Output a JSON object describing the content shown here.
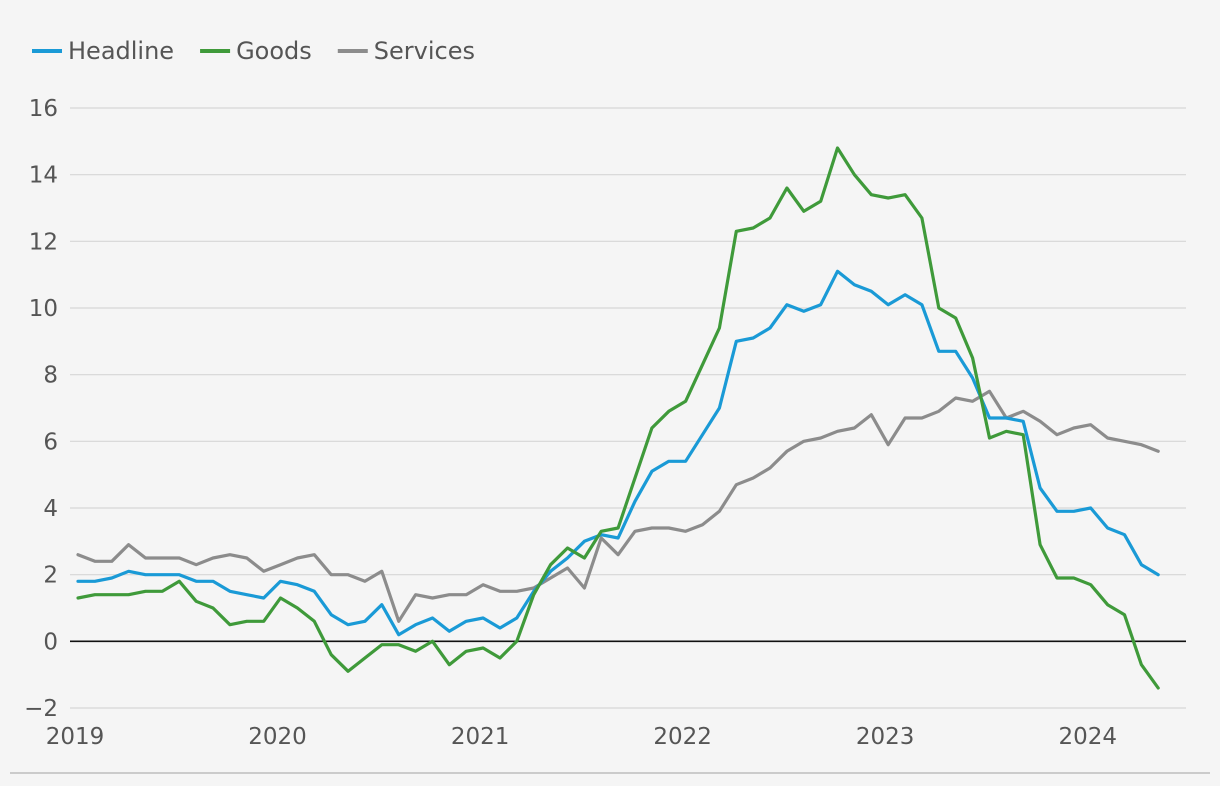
{
  "chart_data": {
    "type": "line",
    "title": "",
    "xlabel": "",
    "ylabel": "",
    "ylim": [
      -2,
      16
    ],
    "xlim": [
      2019.0,
      2024.5
    ],
    "x_ticks": [
      {
        "value": 2019,
        "label": "2019"
      },
      {
        "value": 2020,
        "label": "2020"
      },
      {
        "value": 2021,
        "label": "2021"
      },
      {
        "value": 2022,
        "label": "2022"
      },
      {
        "value": 2023,
        "label": "2023"
      },
      {
        "value": 2024,
        "label": "2024"
      }
    ],
    "y_ticks": [
      {
        "value": -2,
        "label": "−2"
      },
      {
        "value": 0,
        "label": "0"
      },
      {
        "value": 2,
        "label": "2"
      },
      {
        "value": 4,
        "label": "4"
      },
      {
        "value": 6,
        "label": "6"
      },
      {
        "value": 8,
        "label": "8"
      },
      {
        "value": 10,
        "label": "10"
      },
      {
        "value": 12,
        "label": "12"
      },
      {
        "value": 14,
        "label": "14"
      },
      {
        "value": 16,
        "label": "16"
      }
    ],
    "grid": true,
    "legend_position": "top-left",
    "x_start": 2019.0,
    "x_step": 0.0833333,
    "series": [
      {
        "name": "Headline",
        "color": "#1a9ad6",
        "values": [
          1.8,
          1.8,
          1.9,
          2.1,
          2.0,
          2.0,
          2.0,
          1.8,
          1.8,
          1.5,
          1.4,
          1.3,
          1.8,
          1.7,
          1.5,
          0.8,
          0.5,
          0.6,
          1.1,
          0.2,
          0.5,
          0.7,
          0.3,
          0.6,
          0.7,
          0.4,
          0.7,
          1.5,
          2.1,
          2.5,
          3.0,
          3.2,
          3.1,
          4.2,
          5.1,
          5.4,
          5.4,
          6.2,
          7.0,
          9.0,
          9.1,
          9.4,
          10.1,
          9.9,
          10.1,
          11.1,
          10.7,
          10.5,
          10.1,
          10.4,
          10.1,
          8.7,
          8.7,
          7.9,
          6.7,
          6.7,
          6.6,
          4.6,
          3.9,
          3.9,
          4.0,
          3.4,
          3.2,
          2.3,
          2.0
        ]
      },
      {
        "name": "Goods",
        "color": "#3f9a3a",
        "values": [
          1.3,
          1.4,
          1.4,
          1.4,
          1.5,
          1.5,
          1.8,
          1.2,
          1.0,
          0.5,
          0.6,
          0.6,
          1.3,
          1.0,
          0.6,
          -0.4,
          -0.9,
          -0.5,
          -0.1,
          -0.1,
          -0.3,
          0.0,
          -0.7,
          -0.3,
          -0.2,
          -0.5,
          0.0,
          1.4,
          2.3,
          2.8,
          2.5,
          3.3,
          3.4,
          4.9,
          6.4,
          6.9,
          7.2,
          8.3,
          9.4,
          12.3,
          12.4,
          12.7,
          13.6,
          12.9,
          13.2,
          14.8,
          14.0,
          13.4,
          13.3,
          13.4,
          12.7,
          10.0,
          9.7,
          8.5,
          6.1,
          6.3,
          6.2,
          2.9,
          1.9,
          1.9,
          1.7,
          1.1,
          0.8,
          -0.7,
          -1.4
        ]
      },
      {
        "name": "Services",
        "color": "#8c8c8c",
        "values": [
          2.6,
          2.4,
          2.4,
          2.9,
          2.5,
          2.5,
          2.5,
          2.3,
          2.5,
          2.6,
          2.5,
          2.1,
          2.3,
          2.5,
          2.6,
          2.0,
          2.0,
          1.8,
          2.1,
          0.6,
          1.4,
          1.3,
          1.4,
          1.4,
          1.7,
          1.5,
          1.5,
          1.6,
          1.9,
          2.2,
          1.6,
          3.1,
          2.6,
          3.3,
          3.4,
          3.4,
          3.3,
          3.5,
          3.9,
          4.7,
          4.9,
          5.2,
          5.7,
          6.0,
          6.1,
          6.3,
          6.4,
          6.8,
          5.9,
          6.7,
          6.7,
          6.9,
          7.3,
          7.2,
          7.5,
          6.7,
          6.9,
          6.6,
          6.2,
          6.4,
          6.5,
          6.1,
          6.0,
          5.9,
          5.7
        ]
      }
    ]
  }
}
